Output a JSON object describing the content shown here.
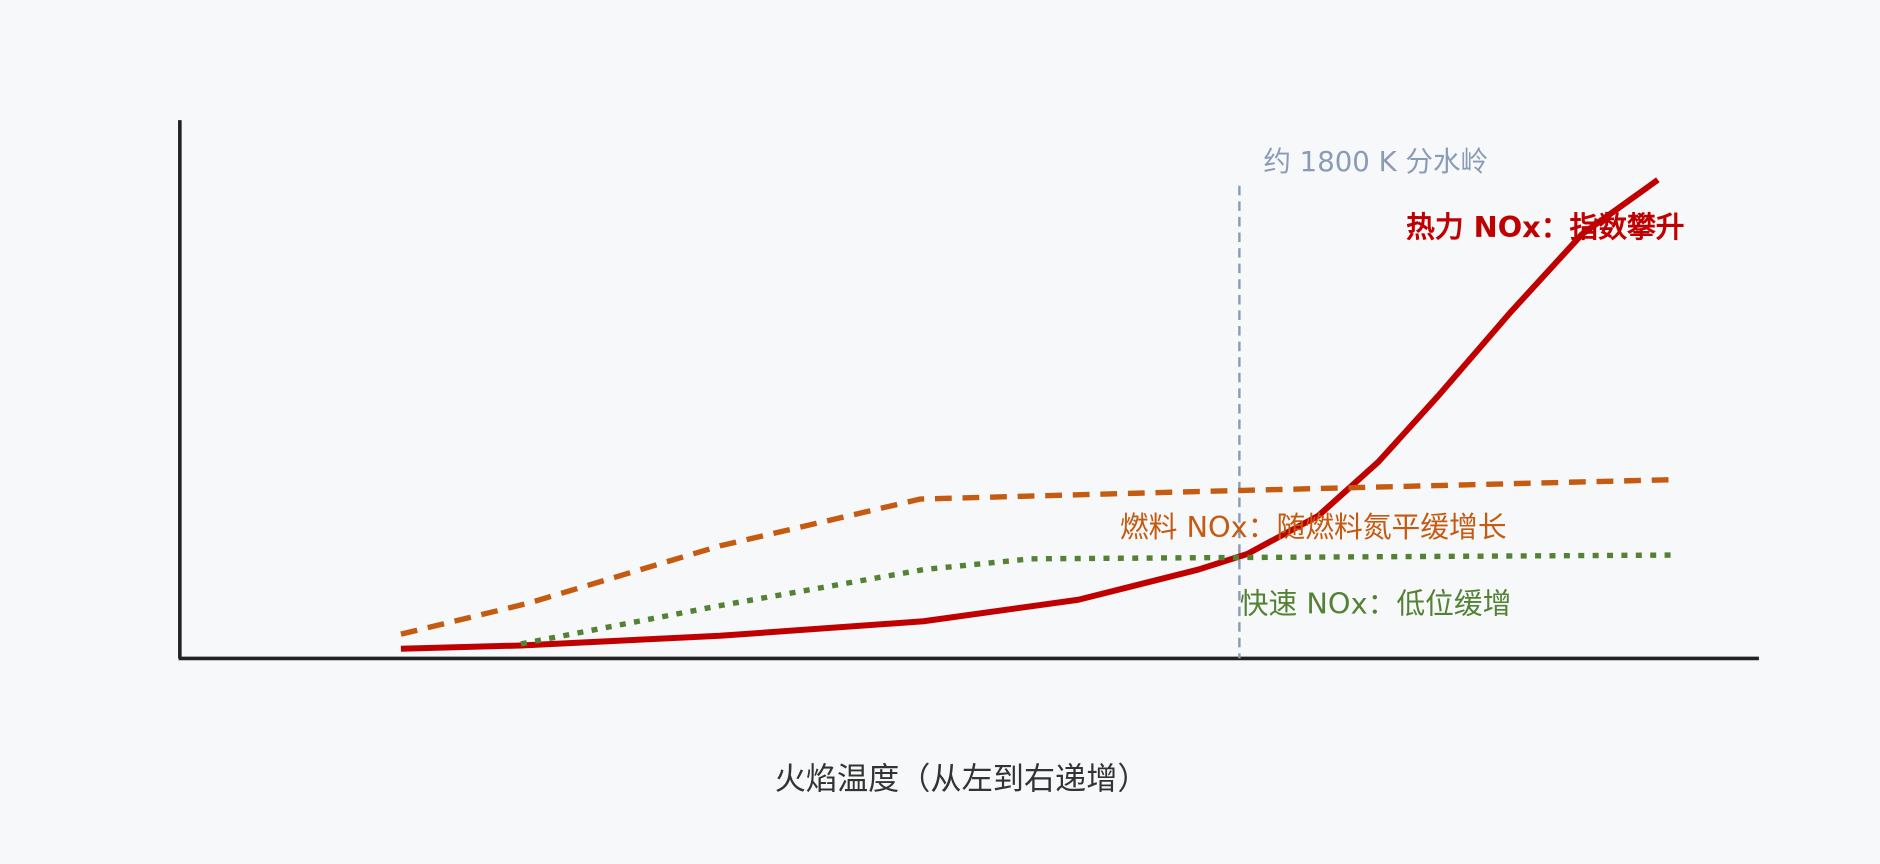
{
  "chart_data": {
    "type": "line",
    "x_label": "火焰温度（从左到右递增）",
    "xlim": [
      0,
      100
    ],
    "ylim": [
      0,
      100
    ],
    "vline": {
      "x": 67.1,
      "top": 87.8,
      "label": "约 1800 K 分水岭",
      "color": "#8a9bb5"
    },
    "series": [
      {
        "name": "热力 NOx：指数攀升",
        "color": "#c00000",
        "style": "solid",
        "x": [
          14.0,
          21.6,
          34.2,
          47.1,
          56.9,
          64.5,
          67.6,
          72.1,
          75.9,
          79.7,
          84.3,
          88.8,
          93.6
        ],
        "values": [
          1.8,
          2.4,
          4.2,
          6.9,
          10.9,
          16.5,
          19.4,
          26.5,
          36.5,
          48.8,
          64.4,
          78.8,
          88.9
        ]
      },
      {
        "name": "燃料 NOx：随燃料氮平缓增长",
        "color": "#c55a11",
        "style": "dashed",
        "x": [
          14.0,
          22.0,
          34.2,
          46.9,
          64.5,
          94.5
        ],
        "values": [
          4.5,
          10.2,
          20.9,
          29.6,
          31.0,
          33.2
        ]
      },
      {
        "name": "快速 NOx：低位缓增",
        "color": "#548235",
        "style": "dotted",
        "x": [
          21.6,
          34.2,
          47.1,
          53.9,
          64.5,
          94.9
        ],
        "values": [
          2.7,
          9.8,
          16.5,
          18.5,
          18.7,
          19.2
        ]
      }
    ]
  }
}
